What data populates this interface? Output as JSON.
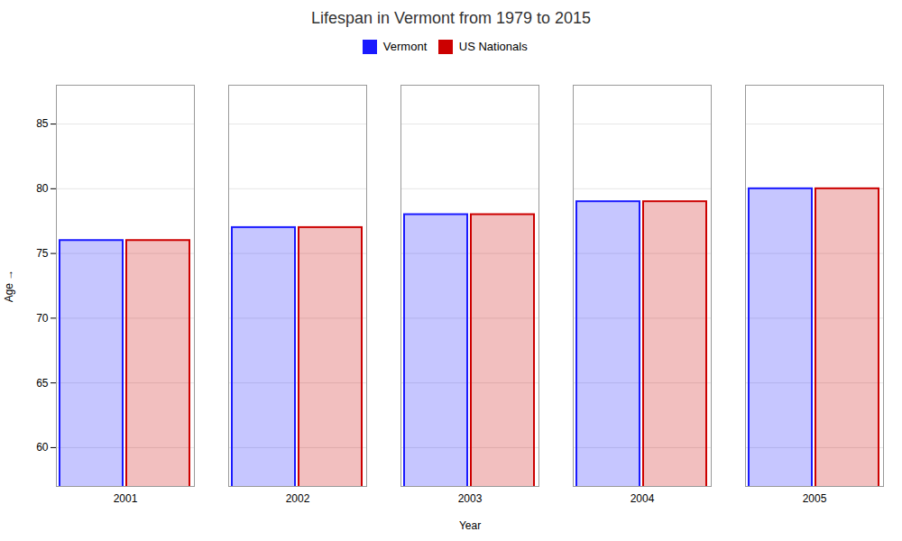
{
  "chart_data": {
    "type": "bar",
    "title": "Lifespan in Vermont from 1979 to 2015",
    "xlabel": "Year",
    "ylabel": "Age",
    "categories": [
      "2001",
      "2002",
      "2003",
      "2004",
      "2005"
    ],
    "series": [
      {
        "name": "Vermont",
        "color": "#1a1aff",
        "values": [
          76,
          77,
          78,
          79,
          80
        ]
      },
      {
        "name": "US Nationals",
        "color": "#cc0000",
        "values": [
          76,
          77,
          78,
          79,
          80
        ]
      }
    ],
    "ylim": [
      57,
      88
    ],
    "yticks": [
      60,
      65,
      70,
      75,
      80,
      85
    ],
    "grid": true,
    "legend": "upper center"
  }
}
